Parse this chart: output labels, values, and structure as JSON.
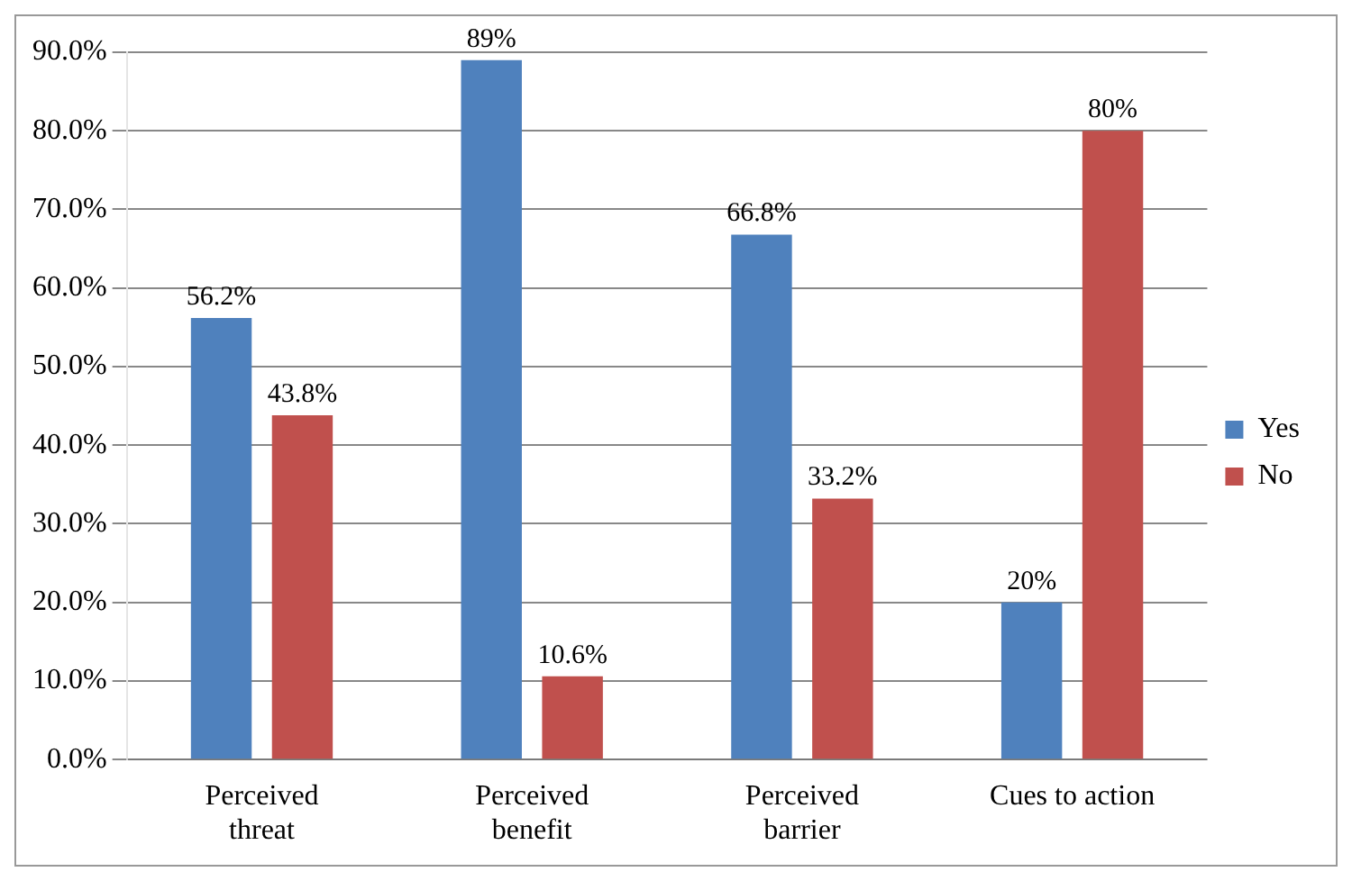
{
  "chart_data": {
    "type": "bar",
    "categories": [
      "Perceived threat",
      "Perceived benefit",
      "Perceived barrier",
      "Cues to action"
    ],
    "series": [
      {
        "name": "Yes",
        "color": "#4f81bd",
        "values": [
          56.2,
          89,
          66.8,
          20
        ],
        "value_labels": [
          "56.2%",
          "89%",
          "66.8%",
          "20%"
        ]
      },
      {
        "name": "No",
        "color": "#c0504d",
        "values": [
          43.8,
          10.6,
          33.2,
          80
        ],
        "value_labels": [
          "43.8%",
          "10.6%",
          "33.2%",
          "80%"
        ]
      }
    ],
    "ylim": [
      0,
      90
    ],
    "yticks": [
      {
        "value": 0,
        "label": "0.0%"
      },
      {
        "value": 10,
        "label": "10.0%"
      },
      {
        "value": 20,
        "label": "20.0%"
      },
      {
        "value": 30,
        "label": "30.0%"
      },
      {
        "value": 40,
        "label": "40.0%"
      },
      {
        "value": 50,
        "label": "50.0%"
      },
      {
        "value": 60,
        "label": "60.0%"
      },
      {
        "value": 70,
        "label": "70.0%"
      },
      {
        "value": 80,
        "label": "80.0%"
      },
      {
        "value": 90,
        "label": "90.0%"
      }
    ],
    "grid": "y",
    "legend": "right"
  }
}
